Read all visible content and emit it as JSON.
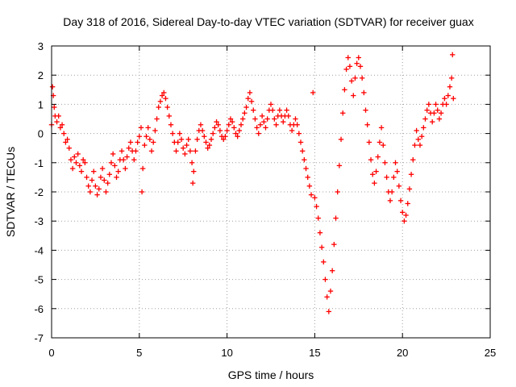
{
  "chart_data": {
    "type": "scatter",
    "title": "Day 318 of 2016, Sidereal Day-to-day VTEC variation (SDTVAR) for receiver guax",
    "xlabel": "GPS time / hours",
    "ylabel": "SDTVAR / TECUs",
    "xlim": [
      0,
      25
    ],
    "ylim": [
      -7,
      3
    ],
    "xticks": [
      "0",
      "5",
      "10",
      "15",
      "20",
      "25"
    ],
    "yticks": [
      "3",
      "2",
      "1",
      "0",
      "-1",
      "-2",
      "-3",
      "-4",
      "-5",
      "-6",
      "-7"
    ],
    "grid": true,
    "marker": "+",
    "color": "#ff0000",
    "series": [
      {
        "name": "SDTVAR",
        "points": [
          [
            0.0,
            0.3
          ],
          [
            0.05,
            1.6
          ],
          [
            0.1,
            1.3
          ],
          [
            0.15,
            0.9
          ],
          [
            0.2,
            0.6
          ],
          [
            0.3,
            0.4
          ],
          [
            0.4,
            0.6
          ],
          [
            0.5,
            0.2
          ],
          [
            0.6,
            0.3
          ],
          [
            0.7,
            0.0
          ],
          [
            0.8,
            -0.3
          ],
          [
            0.9,
            -0.2
          ],
          [
            1.0,
            -0.5
          ],
          [
            1.1,
            -0.9
          ],
          [
            1.2,
            -1.2
          ],
          [
            1.3,
            -0.8
          ],
          [
            1.4,
            -1.0
          ],
          [
            1.5,
            -0.7
          ],
          [
            1.6,
            -1.1
          ],
          [
            1.7,
            -1.3
          ],
          [
            1.8,
            -0.9
          ],
          [
            1.9,
            -1.0
          ],
          [
            2.0,
            -1.5
          ],
          [
            2.1,
            -1.8
          ],
          [
            2.2,
            -2.0
          ],
          [
            2.3,
            -1.6
          ],
          [
            2.4,
            -1.3
          ],
          [
            2.5,
            -1.8
          ],
          [
            2.6,
            -2.1
          ],
          [
            2.7,
            -1.9
          ],
          [
            2.8,
            -1.5
          ],
          [
            2.9,
            -1.2
          ],
          [
            3.0,
            -1.6
          ],
          [
            3.1,
            -2.0
          ],
          [
            3.2,
            -1.7
          ],
          [
            3.3,
            -1.4
          ],
          [
            3.4,
            -1.0
          ],
          [
            3.5,
            -0.7
          ],
          [
            3.6,
            -1.1
          ],
          [
            3.7,
            -1.5
          ],
          [
            3.8,
            -1.3
          ],
          [
            3.9,
            -0.9
          ],
          [
            4.0,
            -0.6
          ],
          [
            4.1,
            -0.9
          ],
          [
            4.2,
            -1.2
          ],
          [
            4.3,
            -0.8
          ],
          [
            4.4,
            -0.5
          ],
          [
            4.5,
            -0.3
          ],
          [
            4.6,
            -0.6
          ],
          [
            4.7,
            -0.9
          ],
          [
            4.8,
            -0.6
          ],
          [
            4.9,
            -0.3
          ],
          [
            5.0,
            -0.1
          ],
          [
            5.1,
            0.2
          ],
          [
            5.15,
            -2.0
          ],
          [
            5.2,
            -1.2
          ],
          [
            5.3,
            -0.4
          ],
          [
            5.4,
            -0.1
          ],
          [
            5.5,
            0.2
          ],
          [
            5.6,
            -0.2
          ],
          [
            5.7,
            -0.6
          ],
          [
            5.8,
            -0.3
          ],
          [
            5.9,
            0.1
          ],
          [
            6.0,
            0.5
          ],
          [
            6.1,
            0.9
          ],
          [
            6.2,
            1.1
          ],
          [
            6.3,
            1.3
          ],
          [
            6.4,
            1.4
          ],
          [
            6.5,
            1.2
          ],
          [
            6.6,
            0.9
          ],
          [
            6.7,
            0.6
          ],
          [
            6.8,
            0.3
          ],
          [
            6.9,
            0.0
          ],
          [
            7.0,
            -0.3
          ],
          [
            7.1,
            -0.6
          ],
          [
            7.2,
            -0.3
          ],
          [
            7.3,
            0.0
          ],
          [
            7.4,
            -0.2
          ],
          [
            7.5,
            -0.5
          ],
          [
            7.6,
            -0.7
          ],
          [
            7.7,
            -0.4
          ],
          [
            7.8,
            -0.2
          ],
          [
            7.9,
            -0.6
          ],
          [
            8.0,
            -1.0
          ],
          [
            8.05,
            -1.7
          ],
          [
            8.1,
            -1.3
          ],
          [
            8.2,
            -0.6
          ],
          [
            8.3,
            -0.2
          ],
          [
            8.4,
            0.1
          ],
          [
            8.5,
            0.3
          ],
          [
            8.6,
            0.1
          ],
          [
            8.7,
            -0.1
          ],
          [
            8.8,
            -0.3
          ],
          [
            8.9,
            -0.5
          ],
          [
            9.0,
            -0.4
          ],
          [
            9.1,
            -0.2
          ],
          [
            9.2,
            0.0
          ],
          [
            9.3,
            0.2
          ],
          [
            9.4,
            0.4
          ],
          [
            9.5,
            0.3
          ],
          [
            9.6,
            0.1
          ],
          [
            9.7,
            -0.1
          ],
          [
            9.8,
            -0.2
          ],
          [
            9.9,
            -0.1
          ],
          [
            10.0,
            0.1
          ],
          [
            10.1,
            0.3
          ],
          [
            10.2,
            0.5
          ],
          [
            10.3,
            0.4
          ],
          [
            10.4,
            0.2
          ],
          [
            10.5,
            0.0
          ],
          [
            10.6,
            -0.1
          ],
          [
            10.7,
            0.1
          ],
          [
            10.8,
            0.3
          ],
          [
            10.9,
            0.5
          ],
          [
            11.0,
            0.7
          ],
          [
            11.1,
            0.9
          ],
          [
            11.2,
            1.2
          ],
          [
            11.3,
            1.4
          ],
          [
            11.4,
            1.1
          ],
          [
            11.5,
            0.8
          ],
          [
            11.6,
            0.5
          ],
          [
            11.7,
            0.2
          ],
          [
            11.8,
            0.0
          ],
          [
            11.9,
            0.3
          ],
          [
            12.0,
            0.6
          ],
          [
            12.1,
            0.4
          ],
          [
            12.2,
            0.2
          ],
          [
            12.3,
            0.5
          ],
          [
            12.4,
            0.8
          ],
          [
            12.5,
            1.0
          ],
          [
            12.6,
            0.8
          ],
          [
            12.7,
            0.5
          ],
          [
            12.8,
            0.3
          ],
          [
            12.9,
            0.6
          ],
          [
            13.0,
            0.8
          ],
          [
            13.1,
            0.6
          ],
          [
            13.2,
            0.4
          ],
          [
            13.3,
            0.6
          ],
          [
            13.4,
            0.8
          ],
          [
            13.5,
            0.6
          ],
          [
            13.6,
            0.3
          ],
          [
            13.7,
            0.1
          ],
          [
            13.8,
            0.3
          ],
          [
            13.9,
            0.5
          ],
          [
            14.0,
            0.3
          ],
          [
            14.1,
            0.0
          ],
          [
            14.2,
            -0.3
          ],
          [
            14.3,
            -0.6
          ],
          [
            14.4,
            -0.9
          ],
          [
            14.5,
            -1.2
          ],
          [
            14.6,
            -1.5
          ],
          [
            14.7,
            -1.8
          ],
          [
            14.8,
            -2.1
          ],
          [
            14.9,
            1.4
          ],
          [
            15.0,
            -2.2
          ],
          [
            15.1,
            -2.5
          ],
          [
            15.2,
            -2.9
          ],
          [
            15.3,
            -3.4
          ],
          [
            15.4,
            -3.9
          ],
          [
            15.5,
            -4.4
          ],
          [
            15.6,
            -5.0
          ],
          [
            15.7,
            -5.6
          ],
          [
            15.8,
            -6.1
          ],
          [
            15.9,
            -5.4
          ],
          [
            16.0,
            -4.7
          ],
          [
            16.1,
            -3.8
          ],
          [
            16.2,
            -2.9
          ],
          [
            16.3,
            -2.0
          ],
          [
            16.4,
            -1.1
          ],
          [
            16.5,
            -0.2
          ],
          [
            16.6,
            0.7
          ],
          [
            16.7,
            1.5
          ],
          [
            16.8,
            2.2
          ],
          [
            16.9,
            2.6
          ],
          [
            17.0,
            2.3
          ],
          [
            17.1,
            1.8
          ],
          [
            17.2,
            1.3
          ],
          [
            17.3,
            1.9
          ],
          [
            17.4,
            2.4
          ],
          [
            17.5,
            2.6
          ],
          [
            17.6,
            2.3
          ],
          [
            17.7,
            1.9
          ],
          [
            17.8,
            1.4
          ],
          [
            17.9,
            0.8
          ],
          [
            18.0,
            0.3
          ],
          [
            18.1,
            -0.3
          ],
          [
            18.2,
            -0.9
          ],
          [
            18.3,
            -1.4
          ],
          [
            18.4,
            -1.7
          ],
          [
            18.5,
            -1.3
          ],
          [
            18.6,
            -0.8
          ],
          [
            18.7,
            -0.3
          ],
          [
            18.8,
            0.2
          ],
          [
            18.9,
            -0.4
          ],
          [
            19.0,
            -1.0
          ],
          [
            19.1,
            -1.5
          ],
          [
            19.2,
            -2.0
          ],
          [
            19.3,
            -2.3
          ],
          [
            19.4,
            -2.0
          ],
          [
            19.5,
            -1.5
          ],
          [
            19.6,
            -1.0
          ],
          [
            19.7,
            -1.3
          ],
          [
            19.8,
            -1.8
          ],
          [
            19.9,
            -2.3
          ],
          [
            20.0,
            -2.7
          ],
          [
            20.1,
            -3.0
          ],
          [
            20.2,
            -2.8
          ],
          [
            20.3,
            -2.4
          ],
          [
            20.4,
            -1.9
          ],
          [
            20.5,
            -1.4
          ],
          [
            20.6,
            -0.9
          ],
          [
            20.7,
            -0.4
          ],
          [
            20.8,
            0.1
          ],
          [
            20.9,
            -0.2
          ],
          [
            21.0,
            -0.4
          ],
          [
            21.1,
            -0.1
          ],
          [
            21.2,
            0.2
          ],
          [
            21.3,
            0.5
          ],
          [
            21.4,
            0.8
          ],
          [
            21.5,
            1.0
          ],
          [
            21.6,
            0.7
          ],
          [
            21.7,
            0.4
          ],
          [
            21.8,
            0.7
          ],
          [
            21.9,
            1.0
          ],
          [
            22.0,
            0.8
          ],
          [
            22.1,
            0.5
          ],
          [
            22.2,
            0.7
          ],
          [
            22.3,
            1.0
          ],
          [
            22.4,
            1.2
          ],
          [
            22.5,
            1.0
          ],
          [
            22.6,
            1.3
          ],
          [
            22.7,
            1.6
          ],
          [
            22.8,
            1.9
          ],
          [
            22.85,
            2.7
          ],
          [
            22.9,
            1.2
          ]
        ]
      }
    ]
  }
}
